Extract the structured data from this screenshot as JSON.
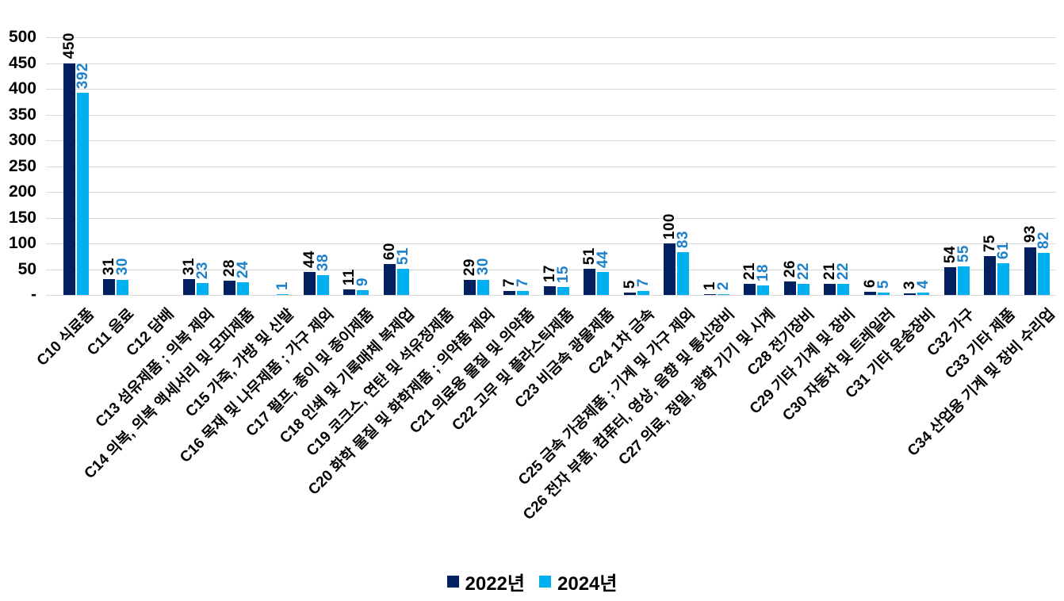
{
  "chart_data": {
    "type": "bar",
    "title": "",
    "categories": [
      "C10 식료품",
      "C11 음료",
      "C12 담배",
      "C13 섬유제품 ; 의복 제외",
      "C14 의복, 의복 액세서리 및 모피제품",
      "C15 가죽, 가방 및 신발",
      "C16 목재 및 나무제품 ; 가구 제외",
      "C17 펄프, 종이 및 종이제품",
      "C18 인쇄 및 기록매체 복제업",
      "C19 코크스, 연탄 및 석유정제품",
      "C20 화학 물질 및 화학제품 ; 의약품 제외",
      "C21 의료용 물질 및 의약품",
      "C22 고무 및 플라스틱제품",
      "C23 비금속 광물제품",
      "C24 1차 금속",
      "C25 금속 가공제품 ; 기계 및 가구 제외",
      "C26 전자 부품, 컴퓨터, 영상, 음향 및 통신장비",
      "C27 의료, 정밀, 광학 기기 및 시계",
      "C28 전기장비",
      "C29 기타 기계 및 장비",
      "C30 자동차 및 트레일러",
      "C31 기타 운송장비",
      "C32 가구",
      "C33 기타 제품",
      "C34 산업용 기계 및 장비 수리업"
    ],
    "series": [
      {
        "name": "2022년",
        "color": "#002060",
        "label_color": "#000000",
        "values": [
          450,
          31,
          null,
          31,
          28,
          null,
          44,
          11,
          60,
          null,
          29,
          7,
          17,
          51,
          5,
          100,
          1,
          21,
          26,
          21,
          6,
          3,
          54,
          75,
          93
        ]
      },
      {
        "name": "2024년",
        "color": "#00B0F0",
        "label_color": "#1E82CB",
        "values": [
          392,
          30,
          null,
          23,
          24,
          1,
          38,
          9,
          51,
          null,
          30,
          7,
          15,
          44,
          7,
          83,
          2,
          18,
          22,
          22,
          5,
          4,
          55,
          61,
          82
        ]
      }
    ],
    "y_axis": {
      "min": 0,
      "max": 500,
      "tick_interval": 50,
      "ticks": [
        "500",
        "450",
        "400",
        "350",
        "300",
        "250",
        "200",
        "150",
        "100",
        "50",
        "-"
      ],
      "grid": true
    },
    "legend": {
      "position": "bottom",
      "entries": [
        "2022년",
        "2024년"
      ]
    }
  }
}
